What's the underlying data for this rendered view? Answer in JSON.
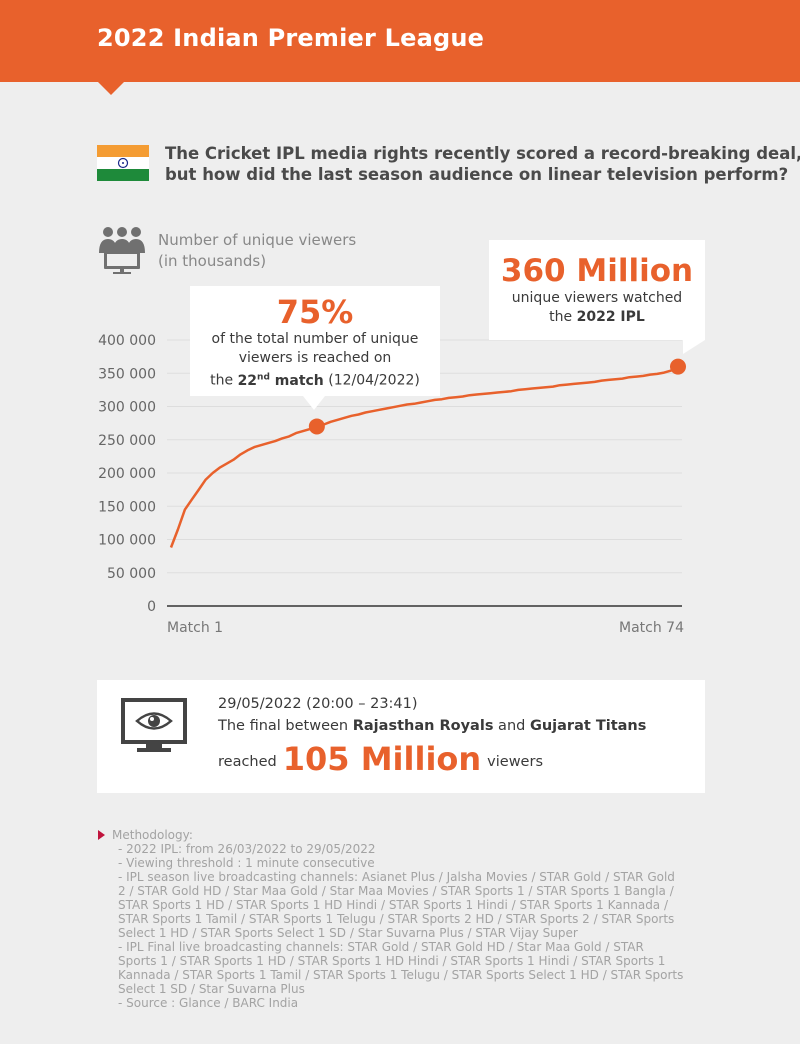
{
  "header": {
    "title": "2022 Indian Premier League"
  },
  "intro": {
    "line1": "The Cricket IPL media rights recently scored a record-breaking deal,",
    "line2": "but how did the last season audience on linear television perform?"
  },
  "flag_colors": {
    "saffron": "#f49c33",
    "white": "#ffffff",
    "green": "#1e8a3a",
    "chakra": "#1b2a8a"
  },
  "viewers_label": {
    "line1": "Number of unique viewers",
    "line2": "(in thousands)"
  },
  "callout_75": {
    "big": "75%",
    "line1": "of the total number of unique",
    "line2": "viewers is reached on",
    "line3_pre": "the ",
    "line3_num": "22",
    "line3_sup": "nd",
    "line3_bold": " match",
    "line3_post": " (12/04/2022)"
  },
  "callout_360": {
    "big": "360 Million",
    "line1": "unique viewers watched",
    "line2_pre": "the ",
    "line2_bold": "2022 IPL"
  },
  "chart_data": {
    "type": "line",
    "title": "",
    "xlabel": "",
    "ylabel": "Number of unique viewers (in thousands)",
    "x_tick_labels": [
      "Match 1",
      "Match 74"
    ],
    "y_ticks": [
      "400 000",
      "350 000",
      "300 000",
      "250 000",
      "200 000",
      "150 000",
      "100 000",
      "50 000",
      "0"
    ],
    "ylim": [
      0,
      400000
    ],
    "xlim": [
      1,
      74
    ],
    "grid": "horizontal",
    "accent_color": "#e8612c",
    "series": [
      {
        "x": [
          1,
          2,
          3,
          4,
          5,
          6,
          7,
          8,
          9,
          10,
          11,
          12,
          13,
          14,
          15,
          16,
          17,
          18,
          19,
          20,
          21,
          22,
          23,
          24,
          25,
          26,
          27,
          28,
          29,
          30,
          31,
          32,
          33,
          34,
          35,
          36,
          37,
          38,
          39,
          40,
          41,
          42,
          43,
          44,
          45,
          46,
          47,
          48,
          49,
          50,
          51,
          52,
          53,
          54,
          55,
          56,
          57,
          58,
          59,
          60,
          61,
          62,
          63,
          64,
          65,
          66,
          67,
          68,
          69,
          70,
          71,
          72,
          73,
          74
        ],
        "values": [
          88000,
          115000,
          145000,
          160000,
          175000,
          190000,
          200000,
          208000,
          214000,
          220000,
          228000,
          234000,
          239000,
          242000,
          245000,
          248000,
          252000,
          255000,
          260000,
          263000,
          266000,
          270000,
          273000,
          277000,
          280000,
          283000,
          286000,
          288000,
          291000,
          293000,
          295000,
          297000,
          299000,
          301000,
          303000,
          304000,
          306000,
          308000,
          310000,
          311000,
          313000,
          314000,
          315000,
          317000,
          318000,
          319000,
          320000,
          321000,
          322000,
          323000,
          325000,
          326000,
          327000,
          328000,
          329000,
          330000,
          332000,
          333000,
          334000,
          335000,
          336000,
          337000,
          339000,
          340000,
          341000,
          342000,
          344000,
          345000,
          346000,
          348000,
          349000,
          351000,
          354000,
          360000
        ]
      }
    ],
    "highlights": [
      {
        "x": 22,
        "y": 270000,
        "label": "75%"
      },
      {
        "x": 74,
        "y": 360000,
        "label": "360 Million"
      }
    ]
  },
  "final": {
    "date": "29/05/2022 (20:00 – 23:41)",
    "text_pre": "The final between ",
    "team1": "Rajasthan Royals",
    "text_mid": " and ",
    "team2": "Gujarat Titans",
    "reach_pre": "reached",
    "reach_big": "105 Million",
    "reach_post": "viewers"
  },
  "methodology": {
    "heading": "Methodology:",
    "lines": [
      "- 2022 IPL: from 26/03/2022 to 29/05/2022",
      "- Viewing threshold : 1 minute consecutive",
      "- IPL season live broadcasting channels: Asianet Plus / Jalsha Movies / STAR Gold / STAR Gold",
      "2 / STAR Gold HD / Star Maa Gold / Star Maa Movies / STAR Sports 1 / STAR Sports 1 Bangla /",
      "STAR Sports 1 HD / STAR Sports 1 HD Hindi / STAR Sports 1 Hindi / STAR Sports 1 Kannada /",
      "STAR Sports 1 Tamil / STAR Sports 1 Telugu / STAR Sports 2 HD / STAR Sports 2 / STAR Sports",
      "Select 1 HD / STAR Sports Select 1 SD / Star Suvarna Plus / STAR Vijay Super",
      "- IPL Final live broadcasting channels: STAR Gold / STAR Gold HD / Star Maa Gold / STAR",
      "Sports 1 / STAR Sports 1 HD / STAR Sports 1 HD Hindi / STAR Sports 1 Hindi / STAR Sports 1",
      "Kannada / STAR Sports 1 Tamil / STAR Sports 1 Telugu / STAR Sports Select 1 HD / STAR Sports",
      "Select 1 SD / Star Suvarna Plus",
      "- Source : Glance / BARC India"
    ]
  }
}
